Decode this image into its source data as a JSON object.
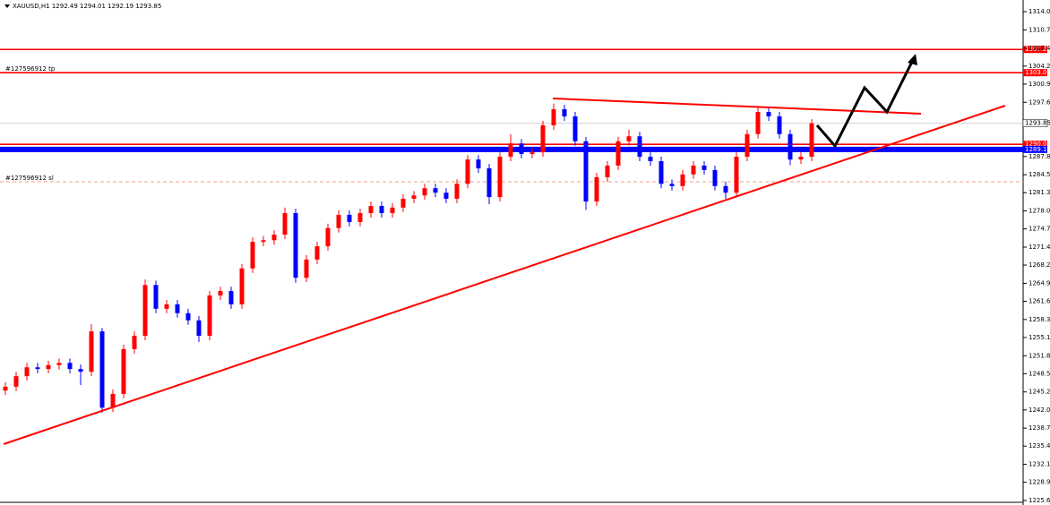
{
  "chart_data": {
    "type": "candlestick",
    "title": "XAUUSD,H1  1292.49 1294.01 1292.19 1293.85",
    "up_color": "#ff0000",
    "down_color": "#0000ff",
    "open": [
      1245.5,
      1246.2,
      1248.1,
      1249.7,
      1249.4,
      1250.1,
      1250.5,
      1249.4,
      1248.9,
      1256.2,
      1242.4,
      1244.9,
      1253.0,
      1255.4,
      1264.6,
      1260.3,
      1261.1,
      1259.5,
      1258.2,
      1255.4,
      1262.7,
      1263.5,
      1261.1,
      1267.6,
      1272.4,
      1272.7,
      1273.7,
      1277.6,
      1265.9,
      1269.2,
      1271.6,
      1274.9,
      1277.3,
      1276.0,
      1277.6,
      1278.9,
      1277.6,
      1278.6,
      1280.2,
      1280.8,
      1282.1,
      1281.3,
      1280.2,
      1282.9,
      1287.3,
      1285.7,
      1280.5,
      1287.8,
      1290.2,
      1288.3,
      1288.6,
      1293.5,
      1296.4,
      1295.1,
      1290.6,
      1279.7,
      1284.1,
      1286.2,
      1290.6,
      1291.5,
      1287.8,
      1287.0,
      1282.9,
      1282.5,
      1284.6,
      1286.2,
      1285.4,
      1282.5,
      1281.3,
      1287.8,
      1291.9,
      1295.9,
      1295.1,
      1291.9,
      1287.3,
      1287.8
    ],
    "high": [
      1247.0,
      1248.9,
      1250.5,
      1250.5,
      1250.9,
      1251.3,
      1251.3,
      1250.2,
      1257.5,
      1256.8,
      1245.7,
      1253.8,
      1256.2,
      1265.6,
      1265.4,
      1261.9,
      1261.9,
      1260.3,
      1259.0,
      1263.5,
      1264.3,
      1264.3,
      1268.4,
      1273.2,
      1273.5,
      1274.5,
      1278.6,
      1278.4,
      1270.0,
      1272.4,
      1275.7,
      1278.1,
      1278.1,
      1278.4,
      1279.7,
      1279.7,
      1279.4,
      1281.0,
      1281.6,
      1282.9,
      1282.9,
      1282.1,
      1283.7,
      1288.1,
      1288.1,
      1286.5,
      1288.6,
      1291.9,
      1291.0,
      1289.4,
      1294.3,
      1297.4,
      1297.2,
      1295.9,
      1291.4,
      1284.9,
      1287.0,
      1291.4,
      1292.7,
      1292.3,
      1288.6,
      1287.8,
      1283.7,
      1285.4,
      1287.0,
      1287.0,
      1286.2,
      1283.3,
      1288.6,
      1292.7,
      1296.9,
      1296.7,
      1295.9,
      1292.7,
      1288.6,
      1294.6
    ],
    "low": [
      1244.7,
      1245.4,
      1247.3,
      1248.6,
      1248.6,
      1249.3,
      1248.6,
      1246.5,
      1248.1,
      1241.5,
      1241.6,
      1244.1,
      1252.2,
      1254.6,
      1259.5,
      1259.5,
      1258.7,
      1257.4,
      1254.3,
      1254.6,
      1261.9,
      1260.3,
      1260.3,
      1266.8,
      1271.6,
      1271.9,
      1272.9,
      1265.0,
      1265.1,
      1268.4,
      1270.8,
      1274.1,
      1275.2,
      1275.2,
      1276.8,
      1276.8,
      1276.8,
      1277.8,
      1279.4,
      1280.0,
      1280.5,
      1279.4,
      1279.4,
      1282.1,
      1284.9,
      1279.2,
      1279.7,
      1287.0,
      1287.5,
      1287.5,
      1287.8,
      1292.7,
      1294.3,
      1289.8,
      1278.2,
      1278.9,
      1283.3,
      1285.4,
      1289.8,
      1287.0,
      1286.2,
      1282.1,
      1281.7,
      1281.7,
      1283.8,
      1284.6,
      1281.7,
      1280.2,
      1280.5,
      1287.0,
      1291.1,
      1294.3,
      1291.1,
      1286.3,
      1286.5,
      1287.0
    ],
    "close": [
      1246.2,
      1248.1,
      1249.7,
      1249.4,
      1250.1,
      1250.5,
      1249.4,
      1248.9,
      1256.2,
      1242.4,
      1244.9,
      1253.0,
      1255.4,
      1264.6,
      1260.3,
      1261.1,
      1259.5,
      1258.2,
      1255.4,
      1262.7,
      1263.5,
      1261.1,
      1267.6,
      1272.4,
      1272.7,
      1273.7,
      1277.6,
      1265.9,
      1269.2,
      1271.6,
      1274.9,
      1277.3,
      1276.0,
      1277.6,
      1278.9,
      1277.6,
      1278.6,
      1280.2,
      1280.8,
      1282.1,
      1281.3,
      1280.2,
      1282.9,
      1287.3,
      1285.7,
      1280.5,
      1287.8,
      1290.2,
      1288.3,
      1288.6,
      1293.5,
      1296.4,
      1295.1,
      1290.6,
      1279.7,
      1284.1,
      1286.2,
      1290.6,
      1291.5,
      1287.8,
      1287.0,
      1282.9,
      1282.5,
      1284.6,
      1286.2,
      1285.4,
      1282.5,
      1281.3,
      1287.8,
      1291.9,
      1295.9,
      1295.1,
      1291.9,
      1287.3,
      1287.8,
      1293.85
    ],
    "ylim": [
      1225.44,
      1316.16
    ],
    "yticks": [
      1314.05,
      1310.75,
      1307.45,
      {
        "value": 1304.2,
        "label": "1304.20"
      },
      1300.95,
      1297.65,
      1287.85,
      1284.55,
      {
        "value": 1281.3,
        "label": "1281.30"
      },
      {
        "value": 1278.0,
        "label": "1278.00"
      },
      1274.75,
      1271.45,
      {
        "value": 1268.2,
        "label": "1268.20"
      },
      {
        "value": 1264.9,
        "label": "1264.90"
      },
      1261.65,
      1258.35,
      {
        "value": 1255.1,
        "label": "1255.10"
      },
      {
        "value": 1251.8,
        "label": "1251.80"
      },
      1248.55,
      1245.25,
      {
        "value": 1242.0,
        "label": "1242.00"
      },
      {
        "value": 1238.7,
        "label": "1238.70"
      },
      1235.45,
      1232.15,
      {
        "value": 1228.9,
        "label": "1228.90"
      },
      {
        "value": 1225.6,
        "label": "1225.60"
      }
    ],
    "levels": [
      {
        "value": 1307.21,
        "color": "#ff0000",
        "boxed": true
      },
      {
        "value": 1303.01,
        "color": "#ff0000",
        "boxed": true,
        "text": "#127596912 tp"
      },
      {
        "value": 1290.05,
        "color": "#ff0000",
        "boxed": true
      },
      {
        "value": 1289.13,
        "color": "#0000ff",
        "boxed": true
      },
      {
        "value": 1283.27,
        "color": "#f0a080",
        "boxed": false,
        "dashed": true,
        "text": "#127596912 sl"
      }
    ],
    "last_price": 1293.85
  }
}
